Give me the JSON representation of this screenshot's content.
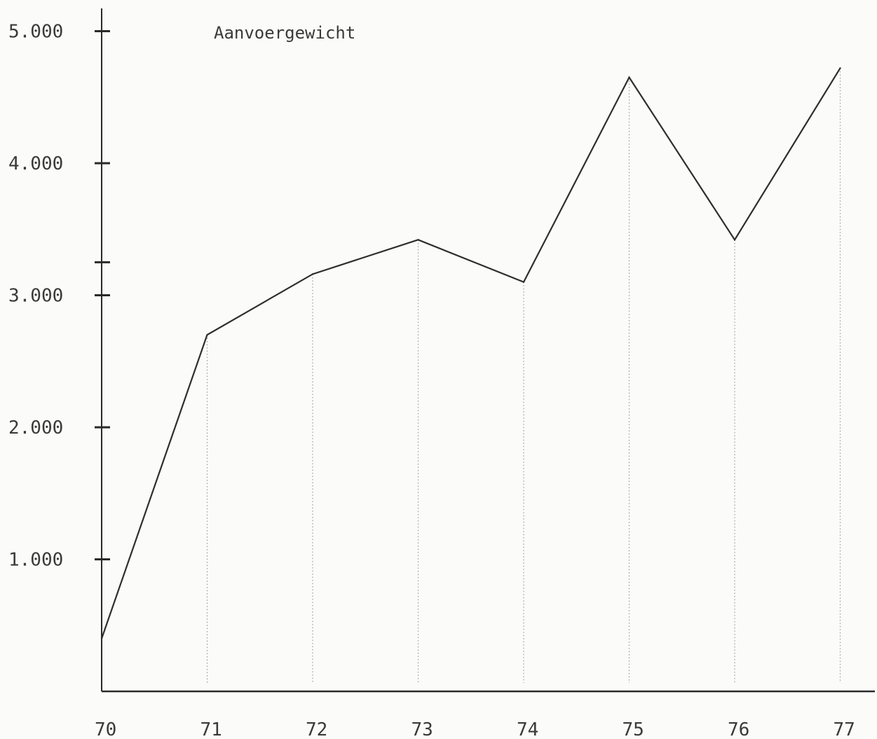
{
  "chart_data": {
    "type": "line",
    "title": "Aanvoergewicht",
    "x": [
      "70",
      "71",
      "72",
      "73",
      "74",
      "75",
      "76",
      "77"
    ],
    "series": [
      {
        "values": [
          400,
          2700,
          3160,
          3420,
          3100,
          4650,
          3420,
          4720
        ]
      }
    ],
    "y_tick_labels": [
      "1.000",
      "2.000",
      "3.000",
      "4.000",
      "5.000"
    ],
    "y_tick_values": [
      1000,
      2000,
      3000,
      4000,
      5000
    ],
    "ylim": [
      0,
      5000
    ],
    "grid": "dotted vertical drop lines at each data point",
    "line_color": "#2e2e2e",
    "axis_color": "#2a2a2a",
    "drop_line_color": "#9a9a9a"
  }
}
